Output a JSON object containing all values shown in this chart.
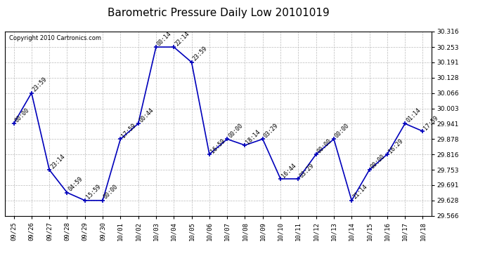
{
  "title": "Barometric Pressure Daily Low 20101019",
  "copyright": "Copyright 2010 Cartronics.com",
  "x_labels": [
    "09/25",
    "09/26",
    "09/27",
    "09/28",
    "09/29",
    "09/30",
    "10/01",
    "10/02",
    "10/03",
    "10/04",
    "10/05",
    "10/06",
    "10/07",
    "10/08",
    "10/09",
    "10/10",
    "10/11",
    "10/12",
    "10/13",
    "10/14",
    "10/15",
    "10/16",
    "10/17",
    "10/18"
  ],
  "y_values": [
    29.941,
    30.066,
    29.753,
    29.66,
    29.628,
    29.628,
    29.878,
    29.941,
    30.253,
    30.253,
    30.191,
    29.816,
    29.878,
    29.853,
    29.878,
    29.716,
    29.716,
    29.816,
    29.878,
    29.628,
    29.753,
    29.816,
    29.941,
    29.91
  ],
  "time_labels": [
    "00:00",
    "23:59",
    "23:14",
    "04:59",
    "15:59",
    "00:00",
    "17:59",
    "00:44",
    "00:14",
    "22:14",
    "23:59",
    "16:59",
    "00:00",
    "18:14",
    "03:29",
    "16:44",
    "03:29",
    "00:00",
    "00:00",
    "21:14",
    "00:00",
    "16:29",
    "01:14",
    "17:59"
  ],
  "ylim": [
    29.566,
    30.316
  ],
  "yticks": [
    29.566,
    29.628,
    29.691,
    29.753,
    29.816,
    29.878,
    29.941,
    30.003,
    30.066,
    30.128,
    30.191,
    30.253,
    30.316
  ],
  "line_color": "#0000bb",
  "marker_color": "#0000bb",
  "bg_color": "#ffffff",
  "grid_color": "#bbbbbb",
  "title_fontsize": 11,
  "tick_fontsize": 6.5,
  "annot_fontsize": 6.0,
  "copyright_fontsize": 6.0
}
